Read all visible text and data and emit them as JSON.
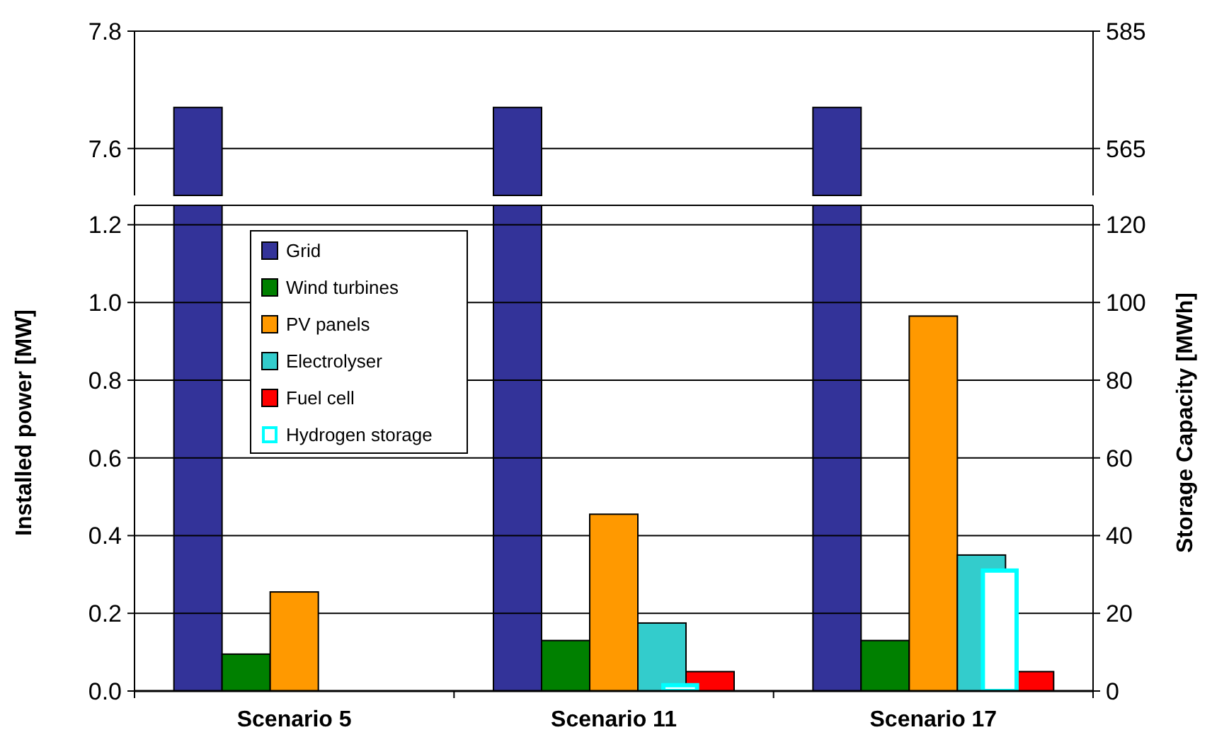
{
  "chart_data": [
    {
      "type": "bar",
      "categories": [
        null,
        null,
        null
      ],
      "ylim": [
        7.52,
        7.8
      ],
      "yticks": [
        7.6,
        7.8
      ],
      "y2lim": [
        557,
        585
      ],
      "y2ticks": [
        565,
        585
      ],
      "grid": "y",
      "tick_labels": "y",
      "legend": false,
      "series": [
        {
          "color": "#333399",
          "values": [
            7.67,
            7.67,
            7.67
          ]
        }
      ]
    },
    {
      "type": "bar",
      "categories": [
        "Scenario 5",
        "Scenario 11",
        "Scenario 17"
      ],
      "ylabel": "Installed power [MW]",
      "y2label": "Storage Capacity [MWh]",
      "ylim": [
        0,
        1.25
      ],
      "yticks": [
        {
          "value": 0,
          "label": "0.0"
        },
        {
          "value": 0.2,
          "label": "0.2"
        },
        {
          "value": 0.4,
          "label": "0.4"
        },
        {
          "value": 0.6,
          "label": "0.6"
        },
        {
          "value": 0.8,
          "label": "0.8"
        },
        {
          "value": 1,
          "label": "1.0"
        },
        {
          "value": 1.2,
          "label": "1.2"
        }
      ],
      "y2lim": [
        0,
        125
      ],
      "y2ticks": [
        0,
        20,
        40,
        60,
        80,
        100,
        120
      ],
      "grid": "y",
      "legend": "top left",
      "series": [
        {
          "name": "Grid",
          "color": "#333399",
          "values": [
            null,
            null,
            null
          ]
        },
        {
          "name": "Wind turbines",
          "color": "#008000",
          "values": [
            0.095,
            0.13,
            0.13
          ]
        },
        {
          "name": "PV panels",
          "color": "#ff9900",
          "values": [
            0.255,
            0.455,
            0.965
          ]
        },
        {
          "name": "Electrolyser",
          "color": "#33cccc",
          "values": [
            null,
            0.175,
            0.35
          ]
        },
        {
          "name": "Fuel cell",
          "color": "#ff0000",
          "values": [
            null,
            0.05,
            0.05
          ]
        },
        {
          "name": "Hydrogen storage",
          "color": "#00ffff",
          "axis": "y2",
          "values": [
            null,
            1.5,
            31
          ]
        }
      ]
    }
  ]
}
